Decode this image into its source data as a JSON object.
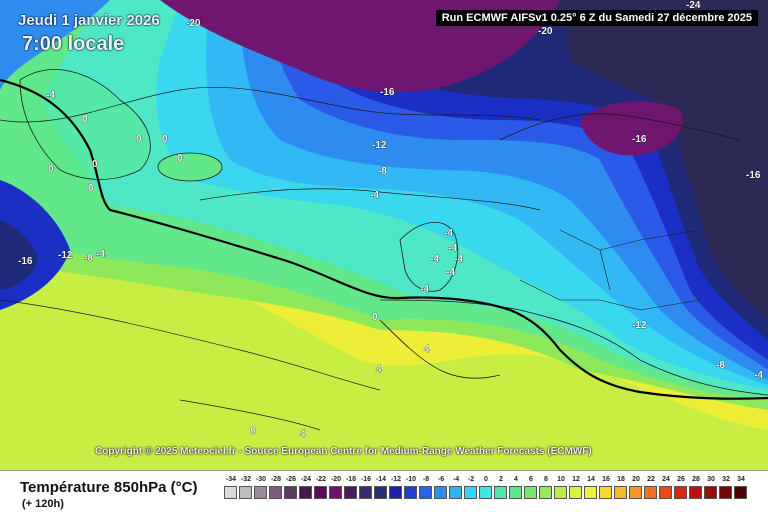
{
  "header": {
    "date": "Jeudi 1 janvier 2026",
    "time": "7:00 locale",
    "run": "Run ECMWF AIFSv1 0.25° 6 Z du Samedi 27 décembre 2025"
  },
  "copyright": "Copyright © 2025 Meteociel.fr - Source European Centre for Medium-Range Weather Forecasts (ECMWF)",
  "footer": {
    "title": "Température 850hPa (°C)",
    "lead": "(+ 120h)"
  },
  "legend": {
    "ticks": [
      "-34",
      "-32",
      "-30",
      "-28",
      "-26",
      "-24",
      "-22",
      "-20",
      "-18",
      "-16",
      "-14",
      "-12",
      "-10",
      "-8",
      "-6",
      "-4",
      "-2",
      "0",
      "2",
      "4",
      "6",
      "8",
      "10",
      "12",
      "14",
      "16",
      "18",
      "20",
      "22",
      "24",
      "26",
      "28",
      "30",
      "32",
      "34"
    ],
    "colors": [
      "#d9d9d9",
      "#bdbdbd",
      "#9c8a9c",
      "#7d5b7d",
      "#5e3a5e",
      "#481848",
      "#5a0b5a",
      "#6e126e",
      "#4a1a5c",
      "#3a2a6a",
      "#2a2a7a",
      "#1f1fb0",
      "#1e3fd8",
      "#2864ee",
      "#2e8bf0",
      "#30b2f4",
      "#36d4f4",
      "#3ee8e0",
      "#4ce8b0",
      "#5ce88a",
      "#74e86a",
      "#96ea5a",
      "#b8ee4c",
      "#d8f240",
      "#f0f036",
      "#f6d830",
      "#f8b82a",
      "#f89424",
      "#f4701e",
      "#ee4a18",
      "#dc2414",
      "#c0100e",
      "#9c0a0a",
      "#760606",
      "#4a0202"
    ]
  },
  "map": {
    "colors": {
      "deep_purple": "#6e1670",
      "dark_slate": "#2c2a55",
      "navy": "#1f2a78",
      "dark_blue": "#1c2fc4",
      "blue": "#2c5ae8",
      "mid_blue": "#2e8cf0",
      "light_blue": "#32b8f4",
      "cyan": "#3ad8ee",
      "aqua": "#4ee8c8",
      "green": "#62e88a",
      "lime": "#8ee85a",
      "yellow_green": "#c8ee44",
      "yellow": "#ecee38",
      "land_line": "#1a1a1a",
      "zero_line": "#000000"
    },
    "contour_labels": [
      "-20",
      "-24",
      "-20",
      "-16",
      "-12",
      "-8",
      "-4",
      "-4",
      "-16",
      "-16",
      "-4",
      "0",
      "0",
      "0",
      "0",
      "0",
      "0",
      "0",
      "-16",
      "-12",
      "-8",
      "-4",
      "-4",
      "-4",
      "-4",
      "-4",
      "-4",
      "-12",
      "-8",
      "-4",
      "0",
      "4",
      "4",
      "4",
      "8"
    ]
  }
}
